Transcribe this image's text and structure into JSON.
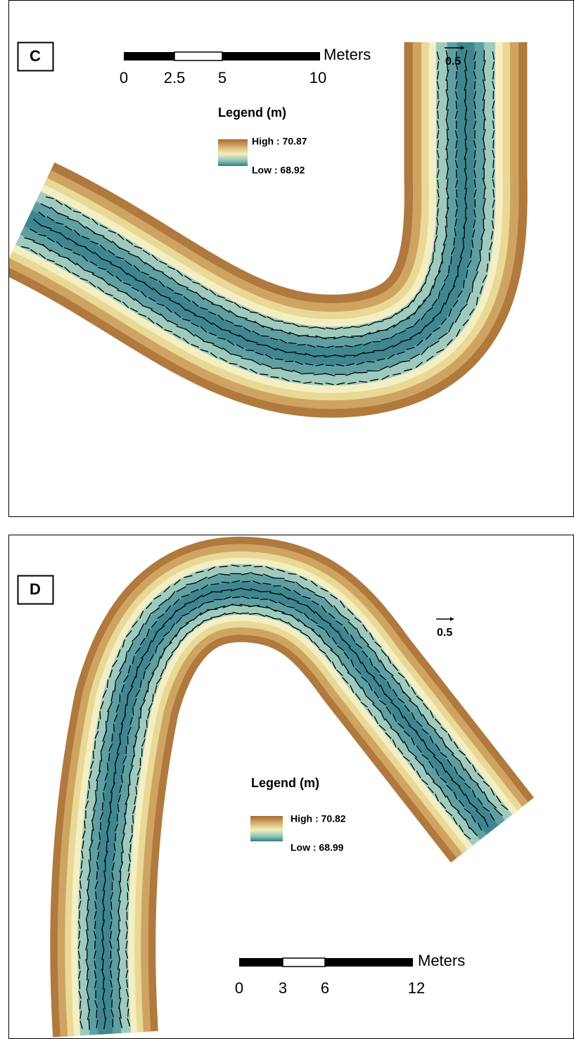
{
  "panels": [
    {
      "label": "C",
      "scale_bar": {
        "unit": "Meters",
        "ticks": [
          "0",
          "2.5",
          "5",
          "10"
        ]
      },
      "legend": {
        "title": "Legend (m)",
        "high": "High : 70.87",
        "low": "Low : 68.92"
      },
      "vector_scale": "0.5"
    },
    {
      "label": "D",
      "scale_bar": {
        "unit": "Meters",
        "ticks": [
          "0",
          "3",
          "6",
          "12"
        ]
      },
      "legend": {
        "title": "Legend (m)",
        "high": "High : 70.82",
        "low": "Low : 68.99"
      },
      "vector_scale": "0.5"
    }
  ]
}
